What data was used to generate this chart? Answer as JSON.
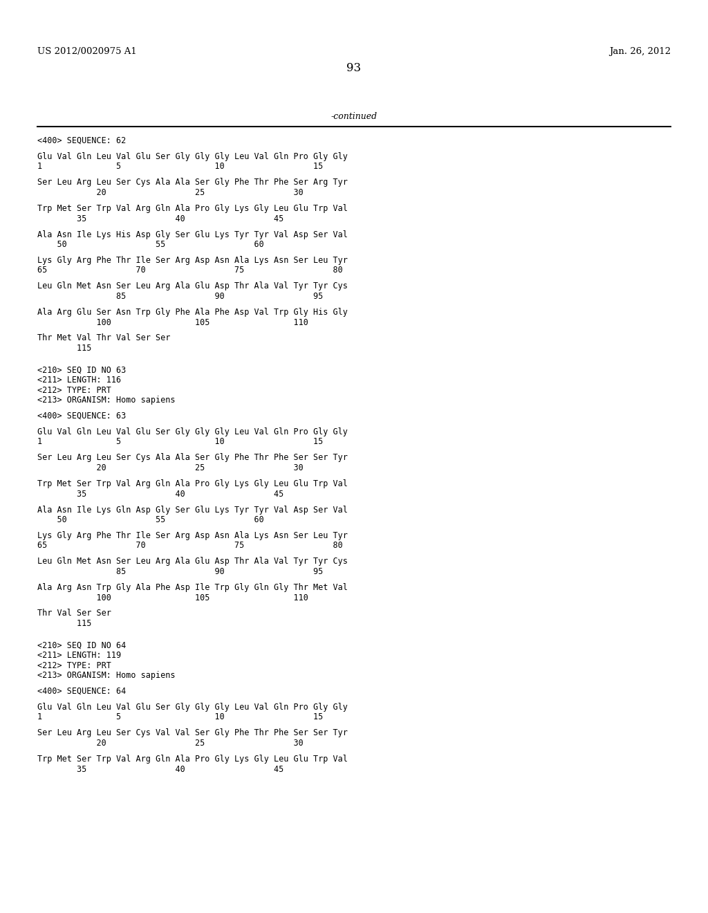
{
  "header_left": "US 2012/0020975 A1",
  "header_right": "Jan. 26, 2012",
  "page_number": "93",
  "continued_text": "-continued",
  "background_color": "#ffffff",
  "text_color": "#000000",
  "mono_font_size": 8.5,
  "header_font_size": 9.5,
  "page_num_font_size": 12,
  "content": [
    "<400> SEQUENCE: 62",
    "",
    "Glu Val Gln Leu Val Glu Ser Gly Gly Gly Leu Val Gln Pro Gly Gly",
    "1               5                   10                  15",
    "",
    "Ser Leu Arg Leu Ser Cys Ala Ala Ser Gly Phe Thr Phe Ser Arg Tyr",
    "            20                  25                  30",
    "",
    "Trp Met Ser Trp Val Arg Gln Ala Pro Gly Lys Gly Leu Glu Trp Val",
    "        35                  40                  45",
    "",
    "Ala Asn Ile Lys His Asp Gly Ser Glu Lys Tyr Tyr Val Asp Ser Val",
    "    50                  55                  60",
    "",
    "Lys Gly Arg Phe Thr Ile Ser Arg Asp Asn Ala Lys Asn Ser Leu Tyr",
    "65                  70                  75                  80",
    "",
    "Leu Gln Met Asn Ser Leu Arg Ala Glu Asp Thr Ala Val Tyr Tyr Cys",
    "                85                  90                  95",
    "",
    "Ala Arg Glu Ser Asn Trp Gly Phe Ala Phe Asp Val Trp Gly His Gly",
    "            100                 105                 110",
    "",
    "Thr Met Val Thr Val Ser Ser",
    "        115",
    "",
    "",
    "<210> SEQ ID NO 63",
    "<211> LENGTH: 116",
    "<212> TYPE: PRT",
    "<213> ORGANISM: Homo sapiens",
    "",
    "<400> SEQUENCE: 63",
    "",
    "Glu Val Gln Leu Val Glu Ser Gly Gly Gly Leu Val Gln Pro Gly Gly",
    "1               5                   10                  15",
    "",
    "Ser Leu Arg Leu Ser Cys Ala Ala Ser Gly Phe Thr Phe Ser Ser Tyr",
    "            20                  25                  30",
    "",
    "Trp Met Ser Trp Val Arg Gln Ala Pro Gly Lys Gly Leu Glu Trp Val",
    "        35                  40                  45",
    "",
    "Ala Asn Ile Lys Gln Asp Gly Ser Glu Lys Tyr Tyr Val Asp Ser Val",
    "    50                  55                  60",
    "",
    "Lys Gly Arg Phe Thr Ile Ser Arg Asp Asn Ala Lys Asn Ser Leu Tyr",
    "65                  70                  75                  80",
    "",
    "Leu Gln Met Asn Ser Leu Arg Ala Glu Asp Thr Ala Val Tyr Tyr Cys",
    "                85                  90                  95",
    "",
    "Ala Arg Asn Trp Gly Ala Phe Asp Ile Trp Gly Gln Gly Thr Met Val",
    "            100                 105                 110",
    "",
    "Thr Val Ser Ser",
    "        115",
    "",
    "",
    "<210> SEQ ID NO 64",
    "<211> LENGTH: 119",
    "<212> TYPE: PRT",
    "<213> ORGANISM: Homo sapiens",
    "",
    "<400> SEQUENCE: 64",
    "",
    "Glu Val Gln Leu Val Glu Ser Gly Gly Gly Leu Val Gln Pro Gly Gly",
    "1               5                   10                  15",
    "",
    "Ser Leu Arg Leu Ser Cys Val Val Ser Gly Phe Thr Phe Ser Ser Tyr",
    "            20                  25                  30",
    "",
    "Trp Met Ser Trp Val Arg Gln Ala Pro Gly Lys Gly Leu Glu Trp Val",
    "        35                  40                  45"
  ]
}
